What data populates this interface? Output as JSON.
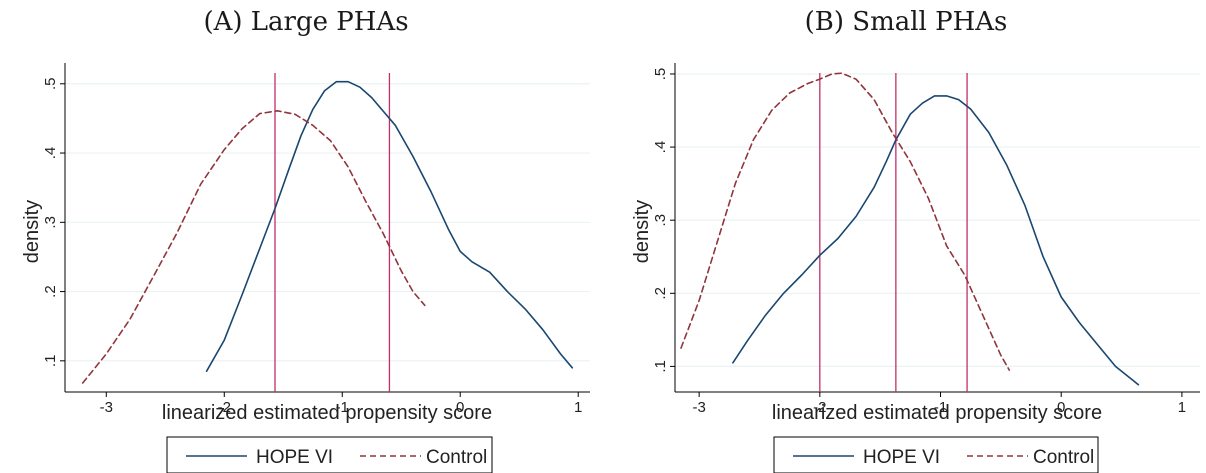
{
  "colors": {
    "hope_vi": "#1a476f",
    "control": "#90353b",
    "ref_line": "#c1306a",
    "grid": "#eaf2f3",
    "axis": "#000000"
  },
  "chart_data": [
    {
      "type": "line",
      "panel_title": "(A) Large PHAs",
      "xlabel": "linearized estimated propensity score",
      "ylabel": "density",
      "xlim": [
        -3.35,
        1.1
      ],
      "ylim": [
        0.055,
        0.53
      ],
      "xticks": [
        -3,
        -2,
        -1,
        0,
        1
      ],
      "yticks": [
        0.1,
        0.2,
        0.3,
        0.4,
        0.5
      ],
      "xtick_labels": [
        "-3",
        "-2",
        "-1",
        "0",
        "1"
      ],
      "ytick_labels": [
        ".1",
        ".2",
        ".3",
        ".4",
        ".5"
      ],
      "grid": true,
      "legend_position": "bottom",
      "vlines": [
        -1.57,
        -0.6
      ],
      "series": [
        {
          "name": "HOPE VI",
          "style": "solid",
          "x": [
            -2.15,
            -2.0,
            -1.85,
            -1.7,
            -1.57,
            -1.45,
            -1.35,
            -1.25,
            -1.15,
            -1.05,
            -0.95,
            -0.85,
            -0.75,
            -0.65,
            -0.55,
            -0.4,
            -0.25,
            -0.1,
            0.0,
            0.1,
            0.25,
            0.4,
            0.55,
            0.7,
            0.85,
            0.95
          ],
          "y": [
            0.085,
            0.13,
            0.195,
            0.262,
            0.32,
            0.378,
            0.425,
            0.463,
            0.49,
            0.503,
            0.503,
            0.495,
            0.48,
            0.46,
            0.44,
            0.395,
            0.345,
            0.29,
            0.258,
            0.243,
            0.228,
            0.2,
            0.175,
            0.145,
            0.11,
            0.09
          ]
        },
        {
          "name": "Control",
          "style": "dashed",
          "x": [
            -3.2,
            -3.0,
            -2.8,
            -2.6,
            -2.4,
            -2.2,
            -2.0,
            -1.85,
            -1.7,
            -1.55,
            -1.4,
            -1.25,
            -1.1,
            -0.95,
            -0.8,
            -0.65,
            -0.5,
            -0.4,
            -0.3
          ],
          "y": [
            0.068,
            0.11,
            0.16,
            0.222,
            0.285,
            0.355,
            0.405,
            0.435,
            0.457,
            0.461,
            0.456,
            0.44,
            0.418,
            0.38,
            0.33,
            0.283,
            0.23,
            0.2,
            0.18
          ]
        }
      ]
    },
    {
      "type": "line",
      "panel_title": "(B) Small PHAs",
      "xlabel": "linearized estimated propensity score",
      "ylabel": "density",
      "xlim": [
        -3.2,
        1.15
      ],
      "ylim": [
        0.065,
        0.515
      ],
      "xticks": [
        -3,
        -2,
        -1,
        0,
        1
      ],
      "yticks": [
        0.1,
        0.2,
        0.3,
        0.4,
        0.5
      ],
      "xtick_labels": [
        "-3",
        "-2",
        "-1",
        "0",
        "1"
      ],
      "ytick_labels": [
        ".1",
        ".2",
        ".3",
        ".4",
        ".5"
      ],
      "grid": true,
      "legend_position": "bottom",
      "vlines": [
        -2.0,
        -1.37,
        -0.78
      ],
      "series": [
        {
          "name": "HOPE VI",
          "style": "solid",
          "x": [
            -2.72,
            -2.6,
            -2.45,
            -2.3,
            -2.15,
            -2.0,
            -1.85,
            -1.7,
            -1.55,
            -1.45,
            -1.37,
            -1.25,
            -1.15,
            -1.05,
            -0.95,
            -0.85,
            -0.75,
            -0.6,
            -0.45,
            -0.3,
            -0.15,
            0.0,
            0.15,
            0.3,
            0.45,
            0.64
          ],
          "y": [
            0.105,
            0.135,
            0.17,
            0.2,
            0.225,
            0.252,
            0.275,
            0.305,
            0.345,
            0.38,
            0.41,
            0.445,
            0.46,
            0.47,
            0.47,
            0.465,
            0.452,
            0.42,
            0.375,
            0.32,
            0.25,
            0.195,
            0.16,
            0.13,
            0.1,
            0.075
          ]
        },
        {
          "name": "Control",
          "style": "dashed",
          "x": [
            -3.15,
            -3.0,
            -2.85,
            -2.7,
            -2.55,
            -2.4,
            -2.25,
            -2.1,
            -2.0,
            -1.9,
            -1.82,
            -1.7,
            -1.55,
            -1.4,
            -1.25,
            -1.1,
            -0.95,
            -0.8,
            -0.65,
            -0.5,
            -0.43
          ],
          "y": [
            0.125,
            0.19,
            0.27,
            0.35,
            0.41,
            0.45,
            0.474,
            0.487,
            0.493,
            0.5,
            0.501,
            0.493,
            0.465,
            0.42,
            0.38,
            0.33,
            0.265,
            0.225,
            0.17,
            0.115,
            0.095
          ]
        }
      ]
    }
  ]
}
